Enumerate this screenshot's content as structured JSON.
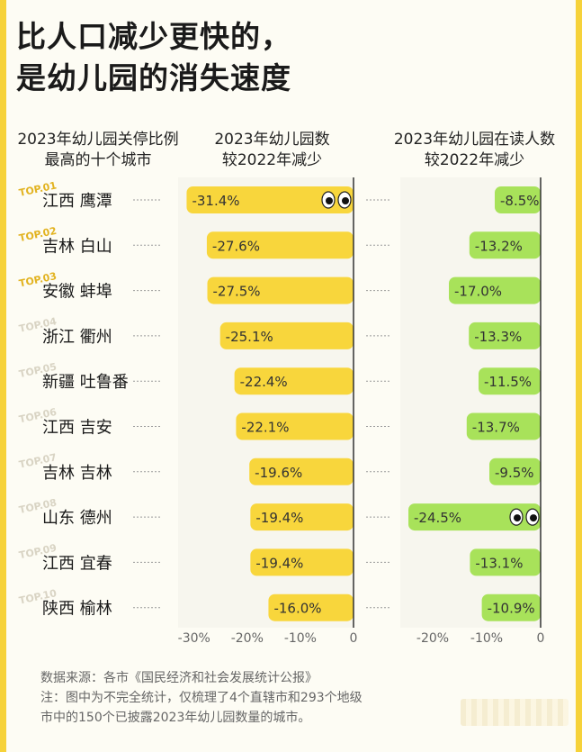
{
  "title": {
    "line1": "比人口减少更快的，",
    "line2": "是幼儿园的消失速度"
  },
  "headers": {
    "city_line1": "2023年幼儿园关停比例",
    "city_line2": "最高的十个城市",
    "left_line1": "2023年幼儿园数",
    "left_line2": "较2022年减少",
    "right_line1": "2023年幼儿园在读人数",
    "right_line2": "较2022年减少"
  },
  "colors": {
    "yellow": "#f8d63c",
    "green": "#a8e25a",
    "text": "#222222"
  },
  "chart_data": [
    {
      "type": "bar",
      "title": "2023年幼儿园数较2022年减少",
      "categories": [
        "江西 鹰潭",
        "吉林 白山",
        "安徽 蚌埠",
        "浙江 衢州",
        "新疆 吐鲁番",
        "江西 吉安",
        "吉林 吉林",
        "山东 德州",
        "江西 宜春",
        "陕西 榆林"
      ],
      "rank_labels": [
        "TOP.01",
        "TOP.02",
        "TOP.03",
        "TOP.04",
        "TOP.05",
        "TOP.06",
        "TOP.07",
        "TOP.08",
        "TOP.09",
        "TOP.10"
      ],
      "values": [
        -31.4,
        -27.6,
        -27.5,
        -25.1,
        -22.4,
        -22.1,
        -19.6,
        -19.4,
        -19.4,
        -16.0
      ],
      "value_labels": [
        "-31.4%",
        "-27.6%",
        "-27.5%",
        "-25.1%",
        "-22.4%",
        "-22.1%",
        "-19.6%",
        "-19.4%",
        "-19.4%",
        "-16.0%"
      ],
      "xlim": [
        -33,
        0
      ],
      "ticks": [
        -30,
        -20,
        -10,
        0
      ],
      "tick_labels": [
        "-30%",
        "-20%",
        "-10%",
        "0"
      ],
      "grid": false
    },
    {
      "type": "bar",
      "title": "2023年幼儿园在读人数较2022年减少",
      "categories": [
        "江西 鹰潭",
        "吉林 白山",
        "安徽 蚌埠",
        "浙江 衢州",
        "新疆 吐鲁番",
        "江西 吉安",
        "吉林 吉林",
        "山东 德州",
        "江西 宜春",
        "陕西 榆林"
      ],
      "values": [
        -8.5,
        -13.2,
        -17.0,
        -13.3,
        -11.5,
        -13.7,
        -9.5,
        -24.5,
        -13.1,
        -10.9
      ],
      "value_labels": [
        "-8.5%",
        "-13.2%",
        "-17.0%",
        "-13.3%",
        "-11.5%",
        "-13.7%",
        "-9.5%",
        "-24.5%",
        "-13.1%",
        "-10.9%"
      ],
      "xlim": [
        -26,
        0
      ],
      "ticks": [
        -20,
        -10,
        0
      ],
      "tick_labels": [
        "-20%",
        "-10%",
        "0"
      ],
      "grid": false
    }
  ],
  "footer": {
    "source": "数据来源：各市《国民经济和社会发展统计公报》",
    "note1": "注：图中为不完全统计，仅梳理了4个直辖市和293个地级",
    "note2": "市中的150个已披露2023年幼儿园数量的城市。"
  }
}
